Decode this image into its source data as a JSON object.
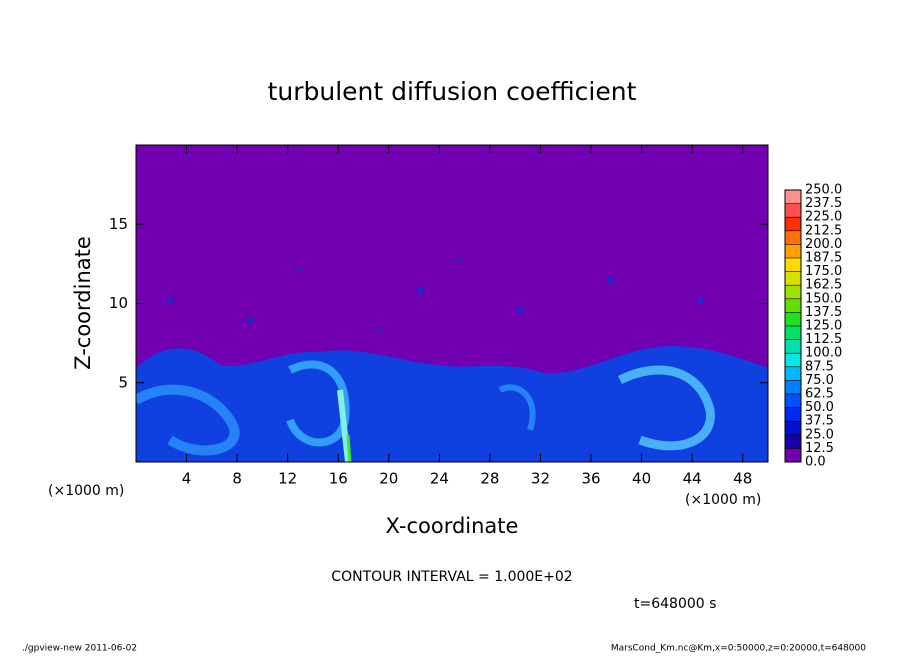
{
  "chart_data": {
    "type": "heatmap",
    "title": "turbulent diffusion coefficient",
    "x_label": "X-coordinate",
    "y_label": "Z-coordinate",
    "x_unit_left": "(×1000 m)",
    "x_unit_right": "(×1000 m)",
    "xlim": [
      0,
      50
    ],
    "xticks": [
      4,
      8,
      12,
      16,
      20,
      24,
      28,
      32,
      36,
      40,
      44,
      48
    ],
    "ylim": [
      0,
      20
    ],
    "yticks": [
      5,
      10,
      15
    ],
    "colorbar": {
      "ticks": [
        {
          "value": 0,
          "label": "0.0"
        },
        {
          "value": 12.5,
          "label": "12.5"
        },
        {
          "value": 25,
          "label": "25.0"
        },
        {
          "value": 37.5,
          "label": "37.5"
        },
        {
          "value": 50,
          "label": "50.0"
        },
        {
          "value": 62.5,
          "label": "62.5"
        },
        {
          "value": 75,
          "label": "75.0"
        },
        {
          "value": 87.5,
          "label": "87.5"
        },
        {
          "value": 100,
          "label": "100.0"
        },
        {
          "value": 112.5,
          "label": "112.5"
        },
        {
          "value": 125,
          "label": "125.0"
        },
        {
          "value": 137.5,
          "label": "137.5"
        },
        {
          "value": 150,
          "label": "150.0"
        },
        {
          "value": 162.5,
          "label": "162.5"
        },
        {
          "value": 175,
          "label": "175.0"
        },
        {
          "value": 187.5,
          "label": "187.5"
        },
        {
          "value": 200,
          "label": "200.0"
        },
        {
          "value": 212.5,
          "label": "212.5"
        },
        {
          "value": 225,
          "label": "225.0"
        },
        {
          "value": 237.5,
          "label": "237.5"
        },
        {
          "value": 250,
          "label": "250.0"
        }
      ],
      "colors": [
        "#7000b0",
        "#1800a8",
        "#0010d0",
        "#0028f0",
        "#0050ff",
        "#0080ff",
        "#00b8ff",
        "#00e8e8",
        "#00e0a8",
        "#00e068",
        "#20e020",
        "#60e000",
        "#a0e000",
        "#d8e000",
        "#ffd800",
        "#ffa000",
        "#ff7000",
        "#ff3000",
        "#ff5050",
        "#ff9090"
      ]
    },
    "contour_interval": "CONTOUR INTERVAL = 1.000E+02",
    "time_label": "t=648000 s",
    "footer_left": "./gpview-new  2011-06-02",
    "footer_right": "MarsCond_Km.nc@Km,x=0:50000,z=0:20000,t=648000"
  }
}
